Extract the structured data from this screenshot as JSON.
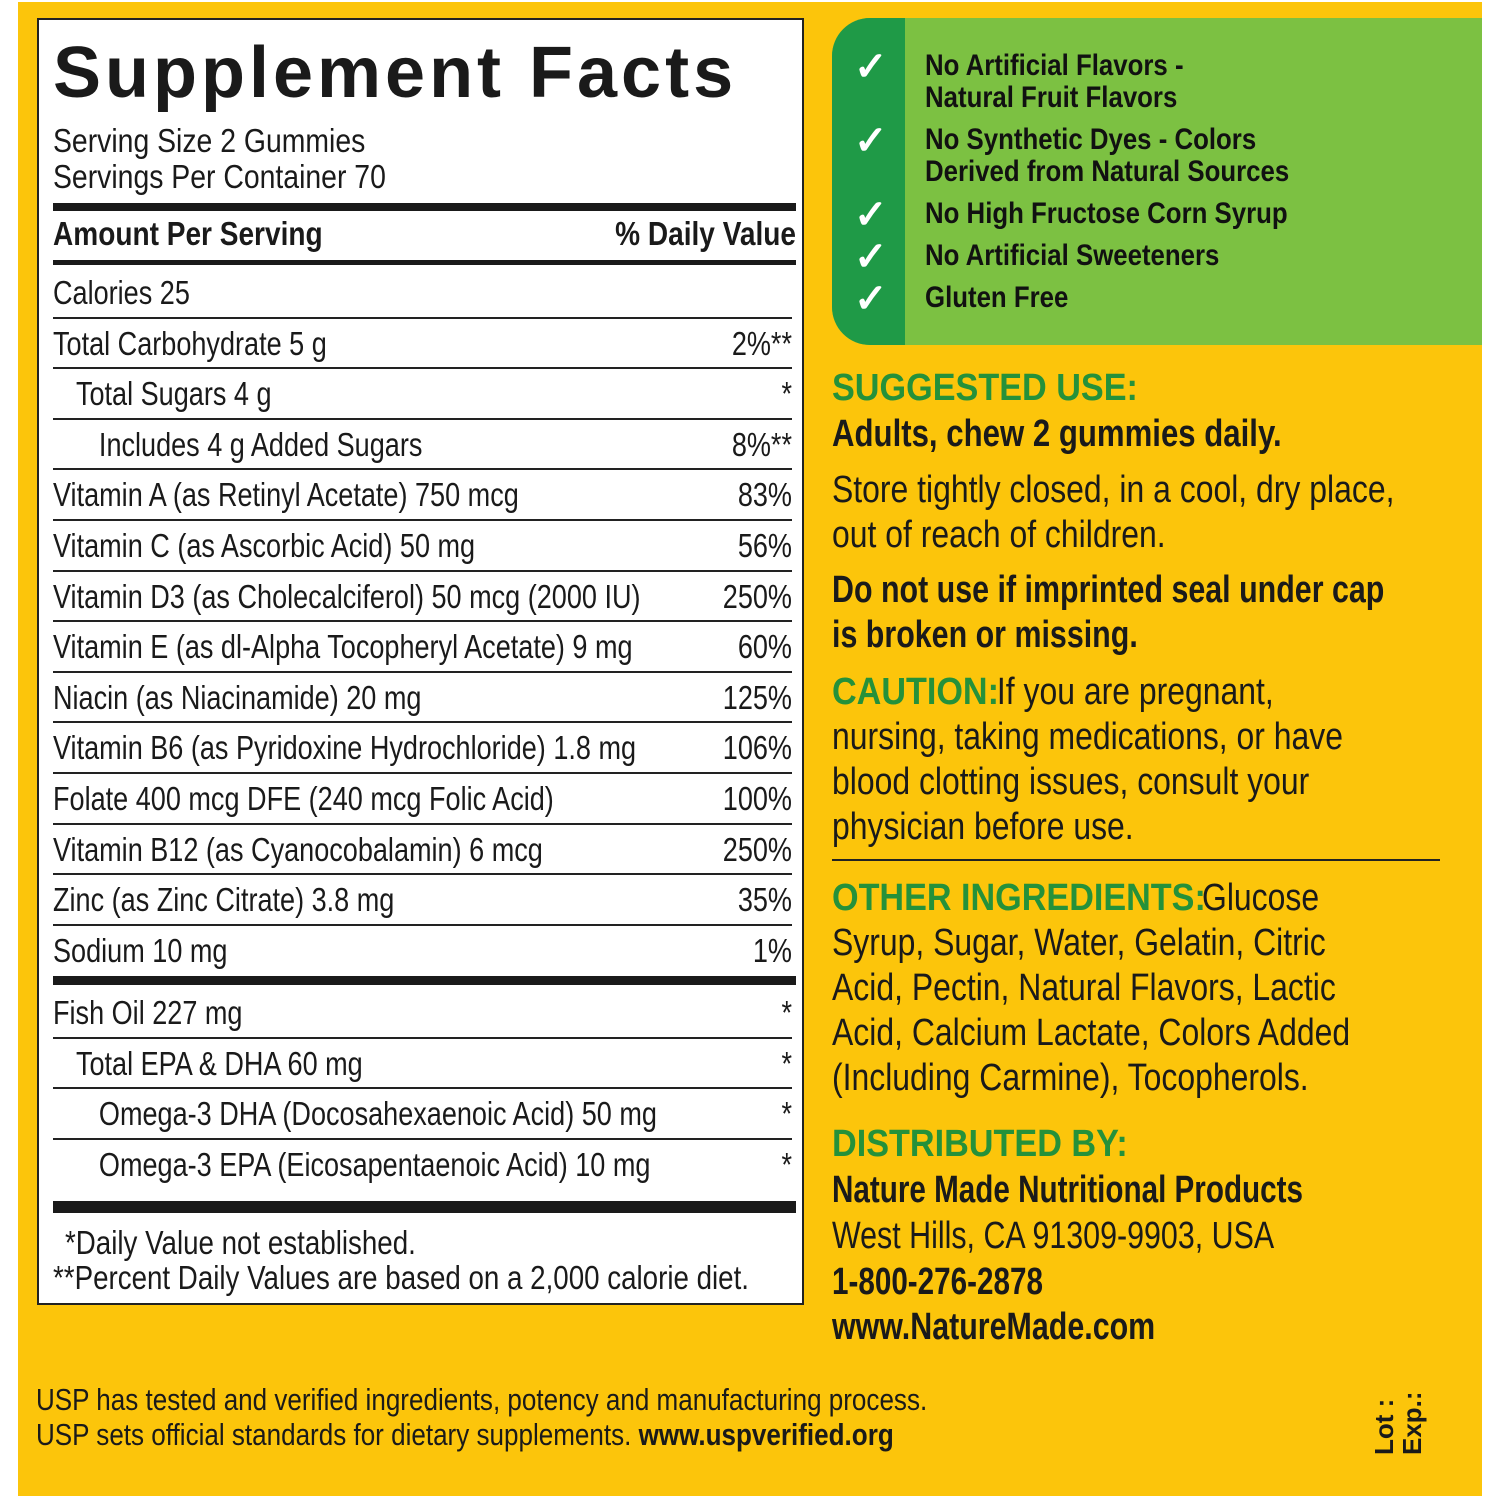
{
  "facts": {
    "title": "Supplement Facts",
    "serving_size": "Serving Size 2 Gummies",
    "servings_per_container": "Servings Per Container 70",
    "amount_header": "Amount Per Serving",
    "dv_header": "% Daily Value",
    "rows": [
      {
        "name": "Calories  25",
        "dv": "",
        "indent": 0
      },
      {
        "name": "Total Carbohydrate  5 g",
        "dv": "2%**",
        "indent": 0
      },
      {
        "name": "Total Sugars  4 g",
        "dv": "*",
        "indent": 1
      },
      {
        "name": "Includes  4 g Added Sugars",
        "dv": "8%**",
        "indent": 2
      },
      {
        "name": "Vitamin A (as Retinyl Acetate)  750 mcg",
        "dv": "83%",
        "indent": 0
      },
      {
        "name": "Vitamin C (as Ascorbic Acid)  50 mg",
        "dv": "56%",
        "indent": 0
      },
      {
        "name": "Vitamin D3 (as Cholecalciferol)  50 mcg (2000 IU)",
        "dv": "250%",
        "indent": 0
      },
      {
        "name": "Vitamin E (as dl-Alpha Tocopheryl Acetate)  9 mg",
        "dv": "60%",
        "indent": 0
      },
      {
        "name": "Niacin (as Niacinamide)  20 mg",
        "dv": "125%",
        "indent": 0
      },
      {
        "name": "Vitamin B6 (as Pyridoxine Hydrochloride)  1.8 mg",
        "dv": "106%",
        "indent": 0
      },
      {
        "name": "Folate  400 mcg DFE (240 mcg Folic Acid)",
        "dv": "100%",
        "indent": 0
      },
      {
        "name": "Vitamin B12 (as Cyanocobalamin)  6 mcg",
        "dv": "250%",
        "indent": 0
      },
      {
        "name": "Zinc (as Zinc Citrate)  3.8 mg",
        "dv": "35%",
        "indent": 0
      },
      {
        "name": "Sodium  10  mg",
        "dv": "1%",
        "indent": 0
      }
    ],
    "rows2": [
      {
        "name": "Fish Oil  227 mg",
        "dv": "*",
        "indent": 0
      },
      {
        "name": "Total EPA & DHA  60 mg",
        "dv": "*",
        "indent": 1
      },
      {
        "name": "Omega-3 DHA (Docosahexaenoic Acid)  50 mg",
        "dv": "*",
        "indent": 2
      },
      {
        "name": "Omega-3 EPA (Eicosapentaenoic Acid)  10 mg",
        "dv": "*",
        "indent": 2
      }
    ],
    "footnote1": "*Daily Value not established.",
    "footnote2": "**Percent Daily Values are based on a 2,000 calorie diet."
  },
  "claims": {
    "icon": "check-icon",
    "items": [
      "No Artificial Flavors -\nNatural Fruit Flavors",
      "No Synthetic Dyes - Colors\nDerived from Natural Sources",
      "No High Fructose Corn Syrup",
      "No Artificial Sweeteners",
      "Gluten Free"
    ]
  },
  "right": {
    "suggested_heading": "SUGGESTED USE:",
    "suggested_text": "Adults, chew 2 gummies daily.",
    "store_text": "Store tightly closed, in a cool, dry place,\nout of reach of children.",
    "seal_text": "Do not use if imprinted seal under cap\nis broken or missing.",
    "caution_heading": "CAUTION:",
    "caution_text": " If you are pregnant,\nnursing, taking medications, or have\nblood clotting issues, consult your\nphysician before use.",
    "ingredients_heading": "OTHER INGREDIENTS:",
    "ingredients_text": " Glucose\nSyrup, Sugar, Water, Gelatin, Citric\nAcid, Pectin, Natural Flavors, Lactic\nAcid, Calcium Lactate, Colors Added\n(Including Carmine), Tocopherols.",
    "distributed_heading": "DISTRIBUTED BY:",
    "company": "Nature Made Nutritional Products",
    "address": "West Hills, CA 91309-9903, USA",
    "phone": "1-800-276-2878",
    "website": "www.NatureMade.com"
  },
  "usp": {
    "line1": "USP has tested and verified ingredients, potency and manufacturing process.",
    "line2": "USP sets official standards for dietary supplements. ",
    "link": "www.uspverified.org"
  },
  "lot_label": "Lot :",
  "exp_label": "Exp.:",
  "colors": {
    "background": "#fcc50b",
    "green_dark": "#1f9a47",
    "green_light": "#7cc142",
    "heading_green": "#25913a"
  }
}
